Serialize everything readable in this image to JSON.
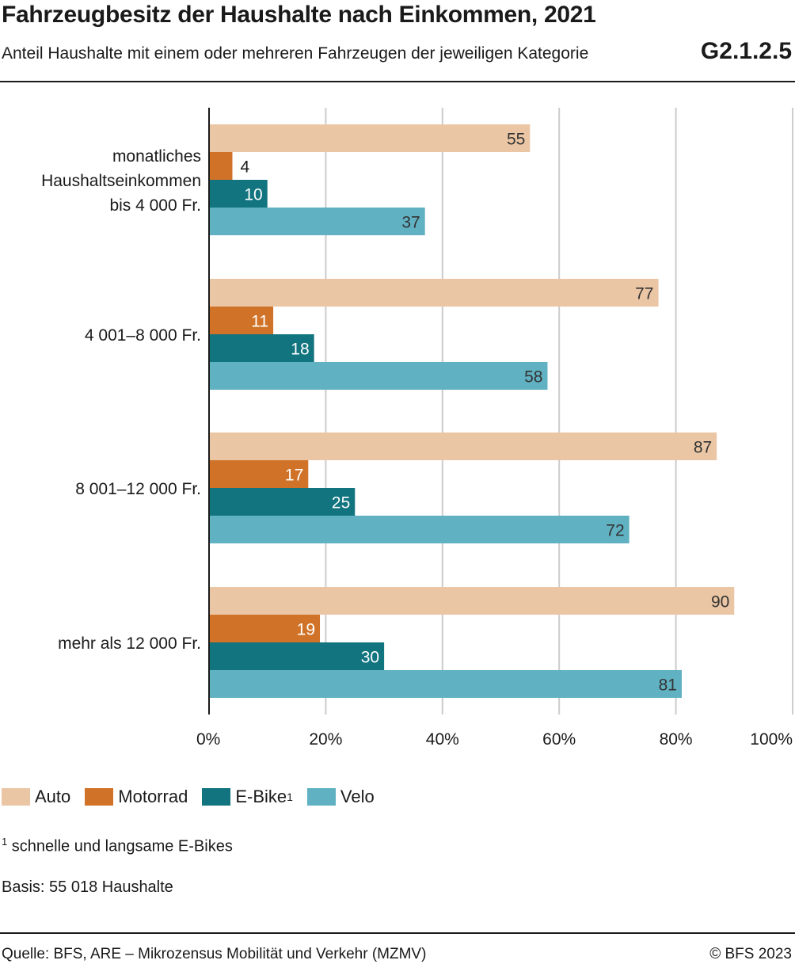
{
  "header": {
    "title": "Fahrzeugbesitz der Haushalte nach Einkommen, 2021",
    "subtitle": "Anteil Haushalte mit einem oder mehreren Fahrzeugen der jeweiligen Kategorie",
    "code": "G2.1.2.5"
  },
  "footer": {
    "footnote_marker": "1",
    "footnote_text": " schnelle und langsame E-Bikes",
    "basis": "Basis: 55 018 Haushalte",
    "source": "Quelle: BFS, ARE – Mikrozensus Mobilität und Verkehr (MZMV)",
    "copyright": "© BFS 2023"
  },
  "colors": {
    "Auto": "#ebc6a4",
    "Motorrad": "#d07328",
    "E-Bike": "#11747f",
    "Velo": "#60b1c2",
    "grid": "#cccccc",
    "axis": "#1a1a1a"
  },
  "chart_data": {
    "type": "bar",
    "orientation": "horizontal",
    "categories": [
      [
        "monatliches",
        "Haushaltseinkommen",
        "bis 4 000 Fr."
      ],
      [
        "4 001–8 000 Fr."
      ],
      [
        "8 001–12 000 Fr."
      ],
      [
        "mehr als 12 000 Fr."
      ]
    ],
    "series": [
      {
        "name": "Auto",
        "values": [
          55,
          77,
          87,
          90
        ],
        "label_color": "#333333"
      },
      {
        "name": "Motorrad",
        "values": [
          4,
          11,
          17,
          19
        ],
        "label_color": "#ffffff"
      },
      {
        "name": "E-Bike",
        "footnote": "1",
        "values": [
          10,
          18,
          25,
          30
        ],
        "label_color": "#ffffff"
      },
      {
        "name": "Velo",
        "values": [
          37,
          58,
          72,
          81
        ],
        "label_color": "#333333"
      }
    ],
    "xlim": [
      0,
      100
    ],
    "xticks": [
      0,
      20,
      40,
      60,
      80,
      100
    ],
    "xtick_labels": [
      "0%",
      "20%",
      "40%",
      "60%",
      "80%",
      "100%"
    ],
    "grid": true,
    "legend_position": "bottom-left"
  }
}
